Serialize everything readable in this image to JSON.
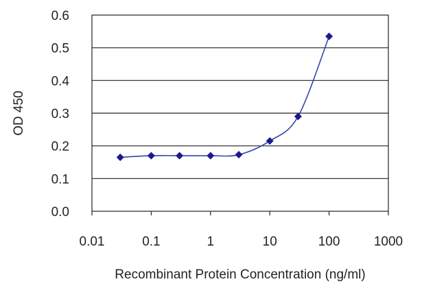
{
  "chart_data": {
    "type": "line",
    "xlabel": "Recombinant Protein Concentration (ng/ml)",
    "ylabel": "OD 450",
    "xscale": "log",
    "xlim": [
      0.01,
      1000
    ],
    "ylim": [
      0,
      0.6
    ],
    "x_ticks": [
      0.01,
      0.1,
      1,
      10,
      100,
      1000
    ],
    "x_tick_labels": [
      "0.01",
      "0.1",
      "1",
      "10",
      "100",
      "1000"
    ],
    "y_ticks": [
      0,
      0.1,
      0.2,
      0.3,
      0.4,
      0.5,
      0.6
    ],
    "y_tick_labels": [
      "0.0",
      "0.1",
      "0.2",
      "0.3",
      "0.4",
      "0.5",
      "0.6"
    ],
    "grid": "horizontal",
    "series": [
      {
        "x": [
          0.03,
          0.1,
          0.3,
          1,
          3,
          10,
          30,
          100
        ],
        "y": [
          0.165,
          0.17,
          0.17,
          0.17,
          0.173,
          0.215,
          0.29,
          0.535
        ],
        "marker": "diamond"
      }
    ],
    "colors": {
      "line": "#3344aa",
      "marker": "#1a1a8c",
      "grid": "#222222",
      "frame": "#222222"
    }
  }
}
